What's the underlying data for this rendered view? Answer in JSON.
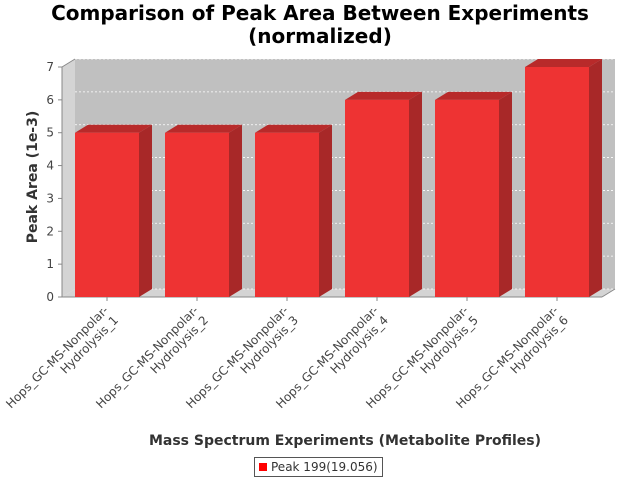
{
  "chart_data": {
    "type": "bar",
    "title_line1": "Comparison of Peak Area Between Experiments",
    "title_line2": "(normalized)",
    "xlabel": "Mass Spectrum Experiments (Metabolite Profiles)",
    "ylabel": "Peak Area (1e-3)",
    "ylim": [
      0,
      7
    ],
    "yticks": [
      0,
      1,
      2,
      3,
      4,
      5,
      6,
      7
    ],
    "grid": true,
    "legend_position": "bottom",
    "categories": [
      "Hops_GC-MS-Nonpolar-Hydrolysis_1",
      "Hops_GC-MS-Nonpolar-Hydrolysis_2",
      "Hops_GC-MS-Nonpolar-Hydrolysis_3",
      "Hops_GC-MS-Nonpolar-Hydrolysis_4",
      "Hops_GC-MS-Nonpolar-Hydrolysis_5",
      "Hops_GC-MS-Nonpolar-Hydrolysis_6"
    ],
    "category_lines": [
      [
        "Hops_GC-MS-Nonpolar-",
        "Hydrolysis_1"
      ],
      [
        "Hops_GC-MS-Nonpolar-",
        "Hydrolysis_2"
      ],
      [
        "Hops_GC-MS-Nonpolar-",
        "Hydrolysis_3"
      ],
      [
        "Hops_GC-MS-Nonpolar-",
        "Hydrolysis_4"
      ],
      [
        "Hops_GC-MS-Nonpolar-",
        "Hydrolysis_5"
      ],
      [
        "Hops_GC-MS-Nonpolar-",
        "Hydrolysis_6"
      ]
    ],
    "series": [
      {
        "name": "Peak 199(19.056)",
        "values": [
          5,
          5,
          5,
          6,
          6,
          7
        ],
        "color": "#ff0000"
      }
    ],
    "colors": {
      "plot_background": "#c0c0c0",
      "plot_side": "#d4d4d4",
      "bar_front": "#ee3333",
      "bar_top": "#b82a2a",
      "bar_side": "#a82828"
    }
  }
}
